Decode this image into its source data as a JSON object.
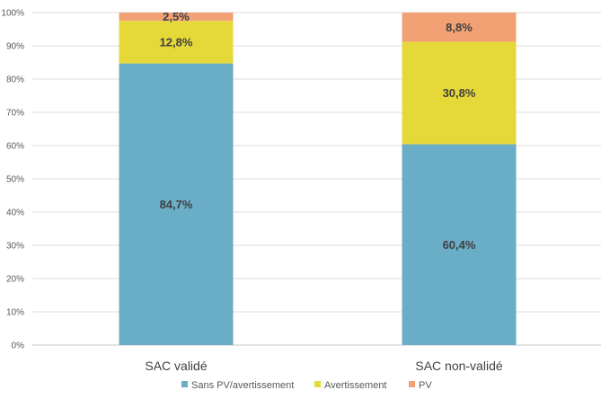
{
  "chart_data": {
    "type": "bar",
    "stacked": true,
    "categories": [
      "SAC validé",
      "SAC non-validé"
    ],
    "series": [
      {
        "name": "Sans PV/avertissement",
        "values": [
          84.7,
          60.4
        ],
        "labels": [
          "84,7%",
          "60,4%"
        ],
        "color": "#6aadc6"
      },
      {
        "name": "Avertissement",
        "values": [
          12.8,
          30.8
        ],
        "labels": [
          "12,8%",
          "30,8%"
        ],
        "color": "#e5d93a"
      },
      {
        "name": "PV",
        "values": [
          2.5,
          8.8
        ],
        "labels": [
          "2,5%",
          "8,8%"
        ],
        "color": "#f2a174"
      }
    ],
    "y_ticks": [
      "0%",
      "10%",
      "20%",
      "30%",
      "40%",
      "50%",
      "60%",
      "70%",
      "80%",
      "90%",
      "100%"
    ],
    "ylim": [
      0,
      100
    ],
    "grid": true,
    "legend_position": "bottom"
  }
}
